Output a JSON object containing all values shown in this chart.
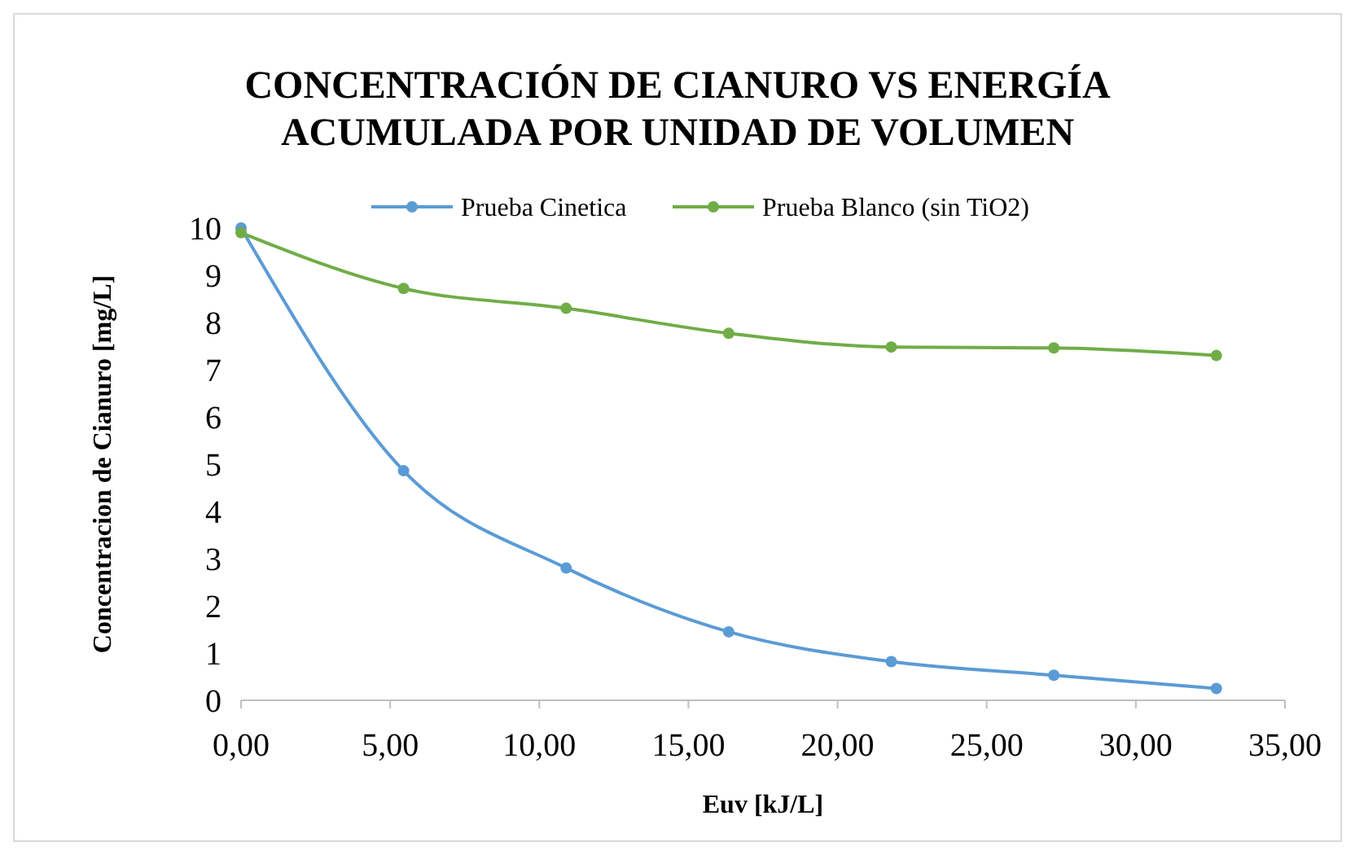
{
  "chart_data": {
    "type": "line",
    "title": "CONCENTRACIÓN DE CIANURO VS ENERGÍA ACUMULADA POR UNIDAD DE VOLUMEN",
    "xlabel": "Euv [kJ/L]",
    "ylabel": "Concentracion  de Cianuro [mg/L]",
    "x": [
      0,
      5.45,
      10.9,
      16.35,
      21.8,
      27.25,
      32.7
    ],
    "series": [
      {
        "name": "Prueba Cinetica",
        "color": "#5b9bd5",
        "values": [
          10,
          4.86,
          2.8,
          1.45,
          0.82,
          0.53,
          0.25
        ]
      },
      {
        "name": "Prueba Blanco (sin TiO2)",
        "color": "#70ad47",
        "values": [
          9.9,
          8.72,
          8.3,
          7.77,
          7.48,
          7.46,
          7.3
        ]
      }
    ],
    "xlim": [
      0,
      35
    ],
    "xticks": [
      {
        "value": 0,
        "label": "0,00"
      },
      {
        "value": 5,
        "label": "5,00"
      },
      {
        "value": 10,
        "label": "10,00"
      },
      {
        "value": 15,
        "label": "15,00"
      },
      {
        "value": 20,
        "label": "20,00"
      },
      {
        "value": 25,
        "label": "25,00"
      },
      {
        "value": 30,
        "label": "30,00"
      },
      {
        "value": 35,
        "label": "35,00"
      }
    ],
    "ylim": [
      0,
      10
    ],
    "yticks": [
      0,
      1,
      2,
      3,
      4,
      5,
      6,
      7,
      8,
      9,
      10
    ],
    "legend": "top",
    "marker": "circle",
    "line_style": "solid",
    "grid": false
  }
}
